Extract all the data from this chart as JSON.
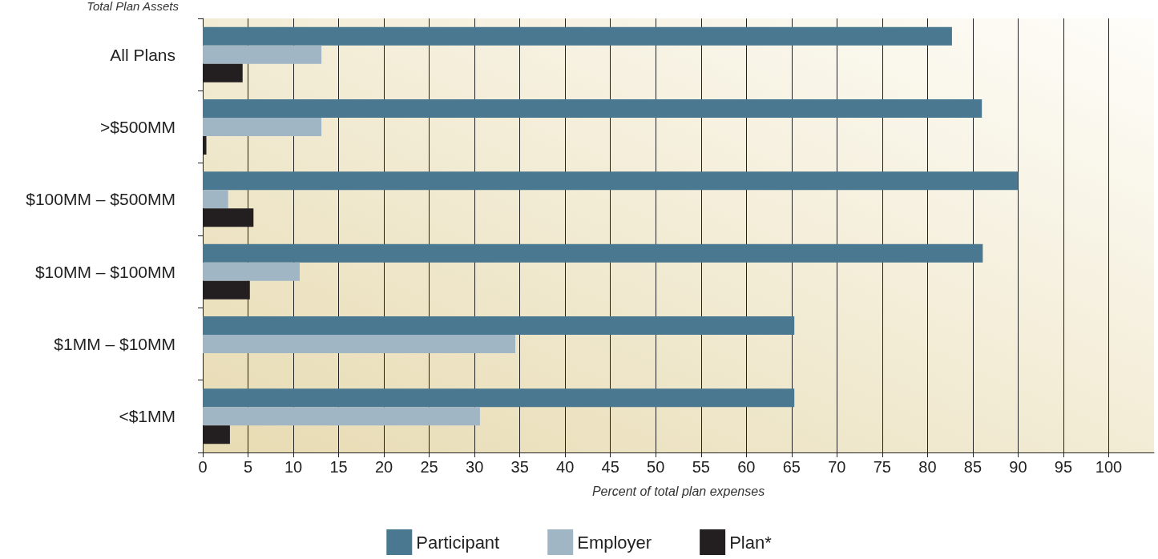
{
  "chart_data": {
    "type": "bar",
    "orientation": "horizontal",
    "ylabel": "Total Plan Assets",
    "xlabel": "Percent of total plan expenses",
    "categories": [
      "All Plans",
      ">$500MM",
      "$100MM – $500MM",
      "$10MM – $100MM",
      "$1MM – $10MM",
      "<$1MM"
    ],
    "series": [
      {
        "name": "Participant",
        "color": "#4a7890",
        "values": [
          82.7,
          86,
          90,
          86.1,
          65.3,
          65.3
        ]
      },
      {
        "name": "Employer",
        "color": "#a0b6c4",
        "values": [
          13.1,
          13.1,
          2.8,
          10.7,
          34.5,
          30.6
        ]
      },
      {
        "name": "Plan*",
        "color": "#231f20",
        "values": [
          4.4,
          0.4,
          5.6,
          5.2,
          null,
          3.0
        ]
      }
    ],
    "xlim": [
      0,
      105
    ],
    "xticks": [
      0,
      5,
      10,
      15,
      20,
      25,
      30,
      35,
      40,
      45,
      50,
      55,
      60,
      65,
      70,
      75,
      80,
      85,
      90,
      95,
      100
    ],
    "grid": "x",
    "legend": "bottom"
  }
}
